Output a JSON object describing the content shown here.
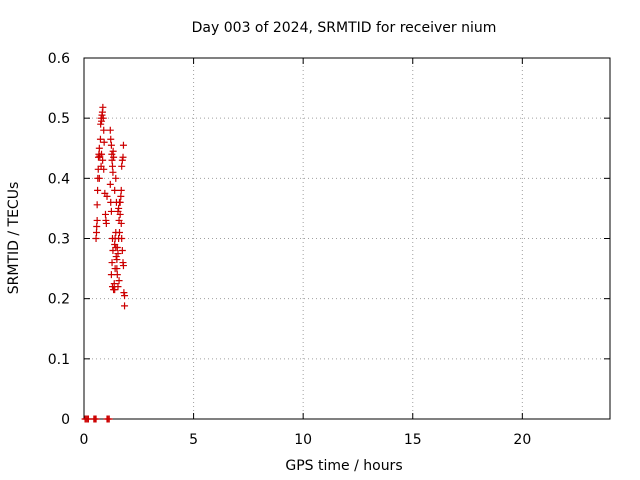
{
  "chart_data": {
    "type": "scatter",
    "title": "Day 003 of 2024, SRMTID for receiver nium",
    "xlabel": "GPS time / hours",
    "ylabel": "SRMTID / TECUs",
    "xlim": [
      0,
      24
    ],
    "ylim": [
      0,
      0.6
    ],
    "xticks": [
      0,
      5,
      10,
      15,
      20
    ],
    "yticks": [
      0,
      0.1,
      0.2,
      0.3,
      0.4,
      0.5,
      0.6
    ],
    "xtick_labels": [
      "0",
      "5",
      "10",
      "15",
      "20"
    ],
    "ytick_labels": [
      "0",
      "0.1",
      "0.2",
      "0.3",
      "0.4",
      "0.5",
      "0.6"
    ],
    "grid": true,
    "marker": "+",
    "color": "#cc0000",
    "series": [
      {
        "points": [
          [
            0.05,
            0
          ],
          [
            0.1,
            0
          ],
          [
            0.15,
            0
          ],
          [
            0.2,
            0
          ],
          [
            0.45,
            0
          ],
          [
            0.5,
            0
          ],
          [
            0.55,
            0
          ],
          [
            1.05,
            0
          ],
          [
            1.1,
            0
          ],
          [
            1.15,
            0
          ],
          [
            0.55,
            0.3
          ],
          [
            0.57,
            0.31
          ],
          [
            0.58,
            0.32
          ],
          [
            0.6,
            0.33
          ],
          [
            0.6,
            0.356
          ],
          [
            0.62,
            0.38
          ],
          [
            0.63,
            0.4
          ],
          [
            0.65,
            0.415
          ],
          [
            0.66,
            0.435
          ],
          [
            0.68,
            0.44
          ],
          [
            0.7,
            0.45
          ],
          [
            0.72,
            0.437
          ],
          [
            0.75,
            0.465
          ],
          [
            0.76,
            0.49
          ],
          [
            0.78,
            0.5
          ],
          [
            0.8,
            0.495
          ],
          [
            0.82,
            0.505
          ],
          [
            0.84,
            0.51
          ],
          [
            0.86,
            0.518
          ],
          [
            0.88,
            0.5
          ],
          [
            0.9,
            0.48
          ],
          [
            0.92,
            0.46
          ],
          [
            0.8,
            0.44
          ],
          [
            0.85,
            0.43
          ],
          [
            0.9,
            0.415
          ],
          [
            0.95,
            0.375
          ],
          [
            0.98,
            0.34
          ],
          [
            1.0,
            0.33
          ],
          [
            1.02,
            0.325
          ],
          [
            1.05,
            0.37
          ],
          [
            0.78,
            0.42
          ],
          [
            0.7,
            0.4
          ],
          [
            1.2,
            0.48
          ],
          [
            1.22,
            0.465
          ],
          [
            1.25,
            0.455
          ],
          [
            1.27,
            0.44
          ],
          [
            1.28,
            0.43
          ],
          [
            1.3,
            0.42
          ],
          [
            1.32,
            0.41
          ],
          [
            1.2,
            0.39
          ],
          [
            1.22,
            0.36
          ],
          [
            1.25,
            0.345
          ],
          [
            1.3,
            0.3
          ],
          [
            1.32,
            0.28
          ],
          [
            1.28,
            0.26
          ],
          [
            1.25,
            0.24
          ],
          [
            1.3,
            0.22
          ],
          [
            1.35,
            0.215
          ],
          [
            1.38,
            0.225
          ],
          [
            1.4,
            0.29
          ],
          [
            1.42,
            0.3
          ],
          [
            1.45,
            0.285
          ],
          [
            1.47,
            0.27
          ],
          [
            1.5,
            0.25
          ],
          [
            1.52,
            0.24
          ],
          [
            1.55,
            0.345
          ],
          [
            1.58,
            0.35
          ],
          [
            1.6,
            0.33
          ],
          [
            1.62,
            0.31
          ],
          [
            1.65,
            0.36
          ],
          [
            1.68,
            0.37
          ],
          [
            1.7,
            0.38
          ],
          [
            1.72,
            0.42
          ],
          [
            1.75,
            0.43
          ],
          [
            1.78,
            0.435
          ],
          [
            1.8,
            0.455
          ],
          [
            1.7,
            0.325
          ],
          [
            1.72,
            0.3
          ],
          [
            1.75,
            0.28
          ],
          [
            1.78,
            0.26
          ],
          [
            1.8,
            0.255
          ],
          [
            1.82,
            0.21
          ],
          [
            1.85,
            0.205
          ],
          [
            1.85,
            0.188
          ],
          [
            1.6,
            0.23
          ],
          [
            1.55,
            0.22
          ],
          [
            1.5,
            0.265
          ],
          [
            1.45,
            0.4
          ],
          [
            1.4,
            0.38
          ],
          [
            1.35,
            0.435
          ],
          [
            1.33,
            0.445
          ],
          [
            1.65,
            0.34
          ],
          [
            1.62,
            0.36
          ],
          [
            1.58,
            0.3
          ],
          [
            1.55,
            0.275
          ],
          [
            1.52,
            0.285
          ],
          [
            1.48,
            0.36
          ],
          [
            1.45,
            0.31
          ],
          [
            1.42,
            0.25
          ],
          [
            1.4,
            0.215
          ]
        ]
      }
    ]
  }
}
